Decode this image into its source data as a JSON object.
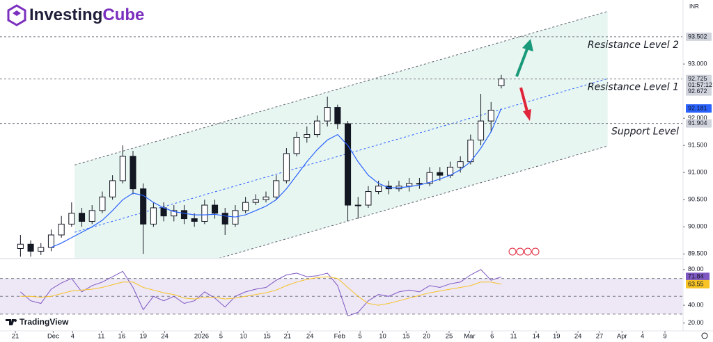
{
  "brand": {
    "first": "Investing",
    "second": "Cube"
  },
  "watermark": "TradingView",
  "currency": "INR",
  "chart_data": [
    {
      "type": "candlestick",
      "open": [
        89.6,
        89.68,
        89.55,
        89.62,
        89.85,
        90.05,
        90.25,
        90.1,
        90.3,
        90.55,
        90.85,
        91.3,
        90.7,
        90.05,
        90.35,
        90.2,
        90.3,
        90.15,
        90.1,
        90.4,
        90.25,
        90.05,
        90.3,
        90.45,
        90.5,
        90.55,
        90.85,
        91.35,
        91.65,
        91.7,
        91.95,
        92.2,
        91.9,
        90.4,
        90.4,
        90.65,
        90.75,
        90.7,
        90.75,
        90.8,
        90.8,
        91.0,
        90.95,
        91.1,
        91.2,
        91.6,
        91.95,
        92.6
      ],
      "high": [
        89.85,
        89.75,
        89.7,
        89.95,
        90.2,
        90.45,
        90.35,
        90.4,
        90.65,
        90.95,
        91.5,
        91.4,
        90.8,
        90.45,
        90.45,
        90.4,
        90.4,
        90.25,
        90.5,
        90.5,
        90.35,
        90.4,
        90.55,
        90.6,
        90.65,
        90.95,
        91.45,
        91.75,
        91.85,
        92.05,
        92.4,
        92.25,
        91.95,
        90.55,
        90.75,
        90.85,
        90.85,
        90.85,
        90.9,
        90.9,
        91.1,
        91.1,
        91.2,
        91.3,
        91.7,
        92.45,
        92.3,
        92.8
      ],
      "low": [
        89.45,
        89.45,
        89.48,
        89.55,
        89.8,
        90.0,
        90.0,
        90.05,
        90.25,
        90.5,
        90.8,
        90.6,
        89.5,
        90.0,
        90.1,
        90.1,
        90.05,
        90.0,
        90.05,
        90.15,
        89.85,
        90.0,
        90.25,
        90.4,
        90.45,
        90.5,
        90.8,
        91.3,
        91.55,
        91.65,
        91.85,
        91.8,
        90.1,
        90.15,
        90.35,
        90.6,
        90.6,
        90.65,
        90.65,
        90.7,
        90.75,
        90.85,
        90.9,
        91.0,
        91.15,
        91.5,
        91.75,
        92.55
      ],
      "close": [
        89.68,
        89.55,
        89.62,
        89.85,
        90.05,
        90.25,
        90.1,
        90.3,
        90.55,
        90.85,
        91.3,
        90.7,
        90.05,
        90.35,
        90.2,
        90.3,
        90.15,
        90.1,
        90.4,
        90.25,
        90.05,
        90.3,
        90.45,
        90.5,
        90.55,
        90.85,
        91.35,
        91.65,
        91.7,
        91.95,
        92.2,
        91.9,
        90.4,
        90.4,
        90.65,
        90.75,
        90.7,
        90.75,
        90.8,
        90.8,
        91.0,
        90.95,
        91.1,
        91.2,
        91.6,
        91.95,
        92.15,
        92.725
      ],
      "up_color": "#ffffff",
      "down_color": "#131722",
      "ma": {
        "color": "#2962ff",
        "values": [
          null,
          null,
          null,
          89.62,
          89.7,
          89.8,
          89.9,
          90.0,
          90.12,
          90.3,
          90.5,
          90.62,
          90.58,
          90.45,
          90.35,
          90.28,
          90.25,
          90.22,
          90.22,
          90.23,
          90.2,
          90.18,
          90.22,
          90.3,
          90.38,
          90.5,
          90.7,
          90.95,
          91.2,
          91.42,
          91.6,
          91.7,
          91.5,
          91.2,
          90.95,
          90.8,
          90.72,
          90.72,
          90.74,
          90.77,
          90.82,
          90.88,
          90.95,
          91.05,
          91.2,
          91.45,
          91.75,
          92.181
        ]
      },
      "xlim": [
        -2,
        64.7
      ],
      "ylim": [
        89.44,
        94.18
      ],
      "yticks": [
        {
          "value": 89.5,
          "label": "89.500"
        },
        {
          "value": 90.0,
          "label": "90.000"
        },
        {
          "value": 90.5,
          "label": "90.500"
        },
        {
          "value": 91.0,
          "label": "91.000"
        },
        {
          "value": 91.5,
          "label": "91.500"
        },
        {
          "value": 92.0,
          "label": "92.000"
        },
        {
          "value": 93.0,
          "label": "93.000"
        }
      ],
      "xticks": [
        {
          "value": -0.5,
          "label": "21"
        },
        {
          "value": 3.2,
          "label": "Dec"
        },
        {
          "value": 5.1,
          "label": "4"
        },
        {
          "value": 7.9,
          "label": "11"
        },
        {
          "value": 9.9,
          "label": "16"
        },
        {
          "value": 12.0,
          "label": "19"
        },
        {
          "value": 14.1,
          "label": "24"
        },
        {
          "value": 17.7,
          "label": "2026"
        },
        {
          "value": 19.6,
          "label": "5"
        },
        {
          "value": 21.8,
          "label": "10"
        },
        {
          "value": 24.1,
          "label": "15"
        },
        {
          "value": 26.1,
          "label": "21"
        },
        {
          "value": 28.3,
          "label": "24"
        },
        {
          "value": 31.2,
          "label": "Feb"
        },
        {
          "value": 33.2,
          "label": "5"
        },
        {
          "value": 35.4,
          "label": "10"
        },
        {
          "value": 37.7,
          "label": "15"
        },
        {
          "value": 39.7,
          "label": "20"
        },
        {
          "value": 41.9,
          "label": "25"
        },
        {
          "value": 43.9,
          "label": "Mar"
        },
        {
          "value": 46.1,
          "label": "6"
        },
        {
          "value": 48.2,
          "label": "11"
        },
        {
          "value": 50.4,
          "label": "14"
        },
        {
          "value": 52.4,
          "label": "19"
        },
        {
          "value": 54.5,
          "label": "24"
        },
        {
          "value": 56.6,
          "label": "27"
        },
        {
          "value": 58.8,
          "label": "Apr"
        },
        {
          "value": 60.8,
          "label": "4"
        },
        {
          "value": 63.0,
          "label": "9"
        }
      ],
      "levels": [
        {
          "value": 93.502,
          "text": "Resistance Level 2"
        },
        {
          "value": 92.725,
          "text": "Resistance Level 1"
        },
        {
          "value": 91.904,
          "text": "Support Level"
        }
      ],
      "channel": {
        "x": [
          5.3,
          57.4
        ],
        "upper": [
          91.14,
          93.97
        ],
        "middle": [
          89.9,
          92.73
        ],
        "lower": [
          88.65,
          91.49
        ],
        "fill": "#e8f6f1",
        "color": "#5d606b",
        "middle_color": "#2962ff"
      },
      "countdown": "01:57:12",
      "prev_label": 92.672
    },
    {
      "type": "line",
      "series": [
        {
          "color": "#7e57c2",
          "values": [
            55,
            45,
            42,
            58,
            65,
            70,
            55,
            62,
            66,
            72,
            78,
            60,
            35,
            50,
            45,
            50,
            42,
            45,
            55,
            48,
            38,
            50,
            55,
            58,
            60,
            68,
            74,
            76,
            72,
            73,
            76,
            62,
            28,
            32,
            45,
            52,
            50,
            55,
            57,
            55,
            62,
            60,
            64,
            66,
            74,
            80,
            68,
            71.84
          ]
        },
        {
          "color": "#f7c325",
          "values": [
            50,
            50,
            49,
            50,
            53,
            56,
            57,
            58,
            60,
            63,
            66,
            66,
            60,
            57,
            54,
            52,
            48,
            47,
            49,
            49,
            47,
            48,
            50,
            52,
            54,
            57,
            62,
            66,
            69,
            71,
            72,
            70,
            60,
            50,
            42,
            40,
            42,
            45,
            48,
            51,
            54,
            56,
            58,
            60,
            62,
            66,
            66,
            63.55
          ]
        }
      ],
      "ylim": [
        12,
        90
      ],
      "yticks": [
        {
          "value": 80,
          "label": "80.00"
        },
        {
          "value": 40,
          "label": "40.00"
        },
        {
          "value": 20,
          "label": "20.00"
        }
      ],
      "hlines": [
        70,
        50,
        30
      ],
      "band_color": "#ede7f6"
    }
  ]
}
